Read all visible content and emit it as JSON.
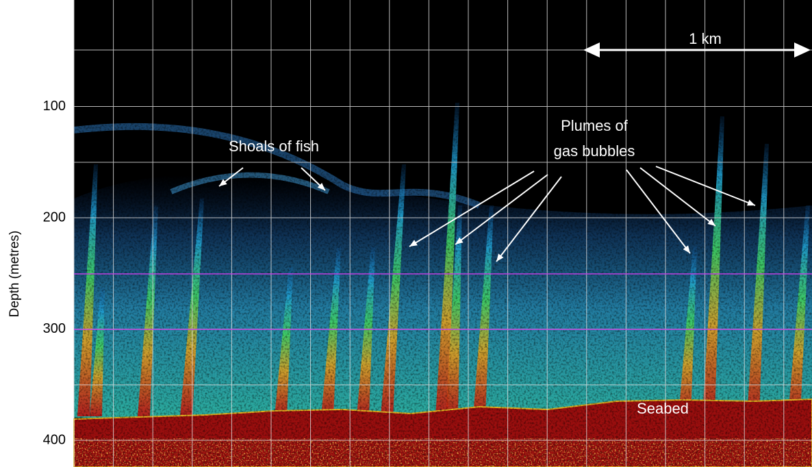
{
  "depth_axis": {
    "label": "Depth (metres)",
    "ticks": [
      100,
      200,
      300,
      400
    ]
  },
  "scale_bar": {
    "label": "1 km"
  },
  "annotations": {
    "fish": "Shoals of fish",
    "plumes": [
      "Plumes of",
      "gas bubbles"
    ],
    "seabed": "Seabed"
  }
}
